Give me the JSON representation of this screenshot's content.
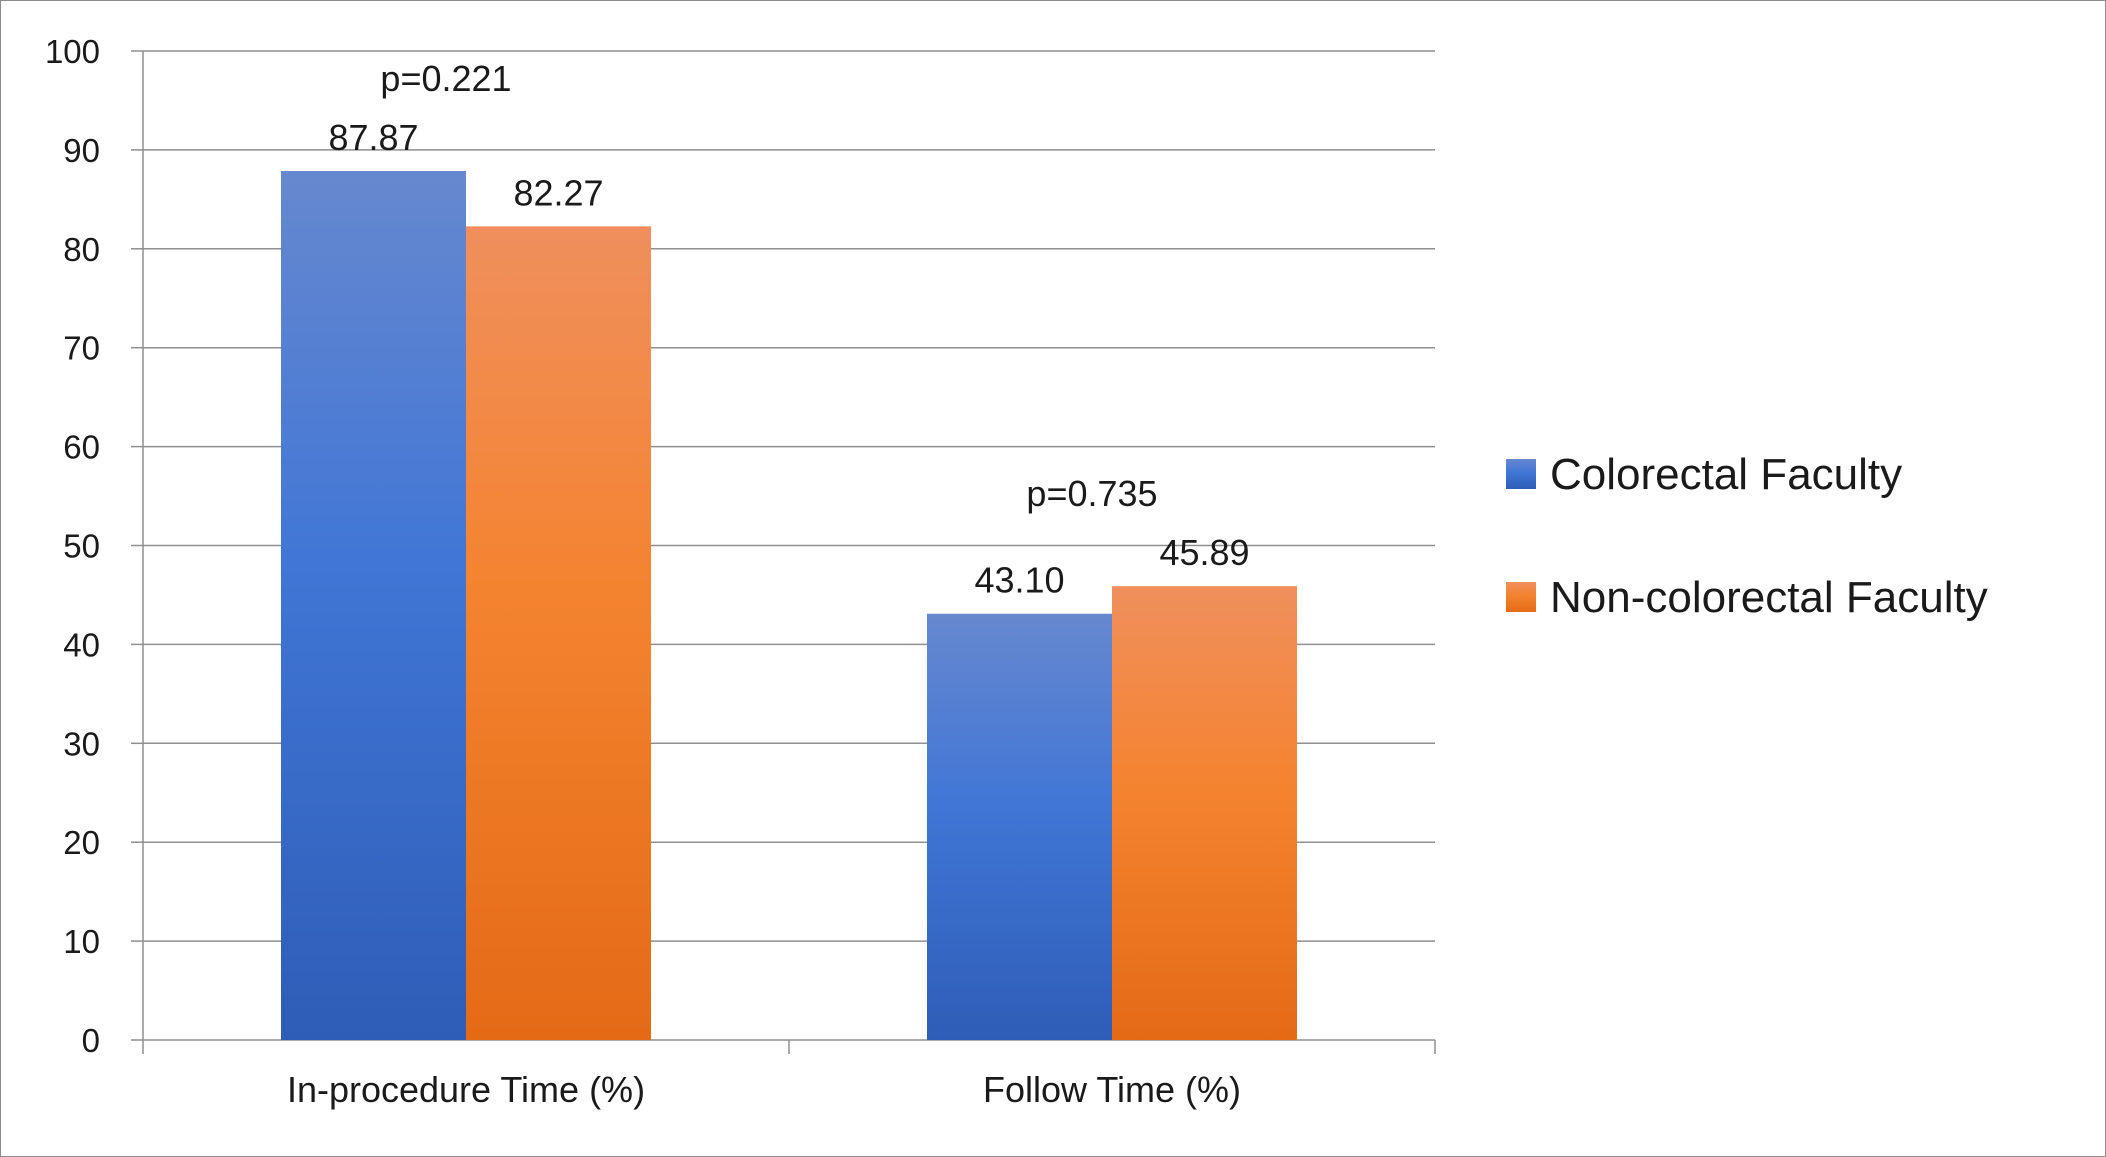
{
  "chart_data": {
    "type": "bar",
    "categories": [
      "In-procedure Time (%)",
      "Follow Time (%)"
    ],
    "series": [
      {
        "name": "Colorectal Faculty",
        "values": [
          87.87,
          43.1
        ],
        "labels": [
          "87.87",
          "43.10"
        ],
        "color": "#4472C4"
      },
      {
        "name": "Non-colorectal Faculty",
        "values": [
          82.27,
          45.89
        ],
        "labels": [
          "82.27",
          "45.89"
        ],
        "color": "#ED7D31"
      }
    ],
    "annotations": [
      "p=0.221",
      "p=0.735"
    ],
    "ylim": [
      0,
      100
    ],
    "yticks": [
      0,
      10,
      20,
      30,
      40,
      50,
      60,
      70,
      80,
      90,
      100
    ],
    "grid": true,
    "legend_position": "right",
    "title": "",
    "xlabel": "",
    "ylabel": ""
  }
}
